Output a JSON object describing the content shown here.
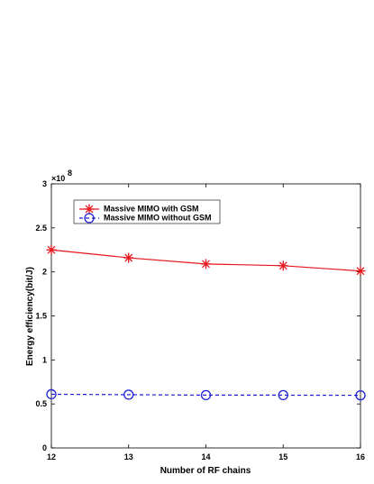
{
  "chart_data": {
    "type": "line",
    "xlabel": "Number of RF chains",
    "ylabel": "Energy efficiency(bit/J)",
    "y_exponent_label": "×10",
    "y_exponent_power": "8",
    "x": [
      12,
      13,
      14,
      15,
      16
    ],
    "xlim": [
      12,
      16
    ],
    "ylim": [
      0,
      3
    ],
    "x_ticks": [
      "12",
      "13",
      "14",
      "15",
      "16"
    ],
    "y_ticks": [
      "0",
      "0.5",
      "1",
      "1.5",
      "2",
      "2.5",
      "3"
    ],
    "grid": false,
    "legend_position": "top-left",
    "series": [
      {
        "name": "Massive MIMO with GSM",
        "values": [
          2.25,
          2.16,
          2.09,
          2.07,
          2.01
        ],
        "color": "#e8141b",
        "line_style": "solid",
        "marker": "asterisk"
      },
      {
        "name": "Massive MIMO without GSM",
        "values": [
          0.61,
          0.605,
          0.6,
          0.6,
          0.598
        ],
        "color": "#1f1fd6",
        "line_style": "dashed",
        "marker": "circle"
      }
    ]
  }
}
